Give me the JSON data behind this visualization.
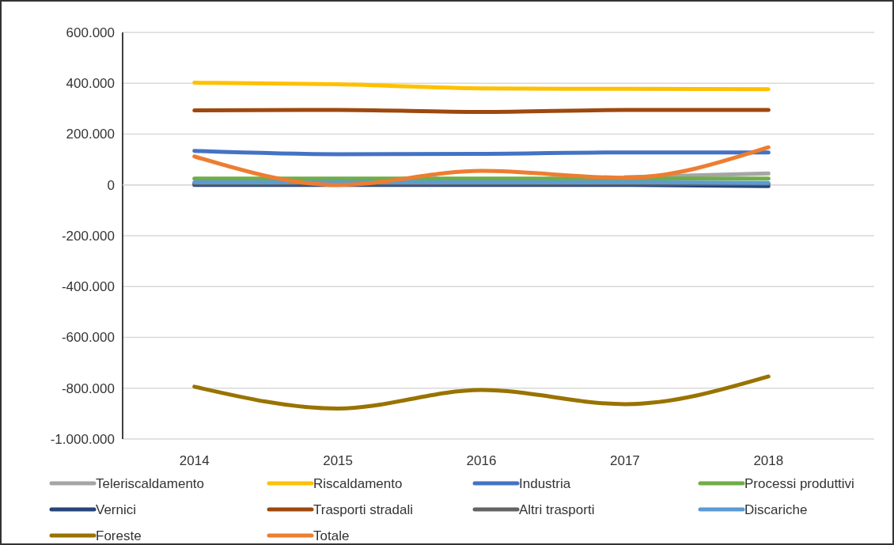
{
  "chart_data": {
    "type": "line",
    "categories": [
      "2014",
      "2015",
      "2016",
      "2017",
      "2018"
    ],
    "ylim": [
      -1000000,
      600000
    ],
    "yticks": [
      {
        "value": -1000000,
        "label": "-1.000.000"
      },
      {
        "value": -800000,
        "label": "-800.000"
      },
      {
        "value": -600000,
        "label": "-600.000"
      },
      {
        "value": -400000,
        "label": "-400.000"
      },
      {
        "value": -200000,
        "label": "-200.000"
      },
      {
        "value": 0,
        "label": "0"
      },
      {
        "value": 200000,
        "label": "200.000"
      },
      {
        "value": 400000,
        "label": "400.000"
      },
      {
        "value": 600000,
        "label": "600.000"
      }
    ],
    "grid": "y",
    "legend": "bottom",
    "marker": "none",
    "line_style": "solid",
    "series": [
      {
        "name": "Teleriscaldamento",
        "color": "#a5a5a5",
        "values": [
          null,
          null,
          null,
          30000,
          45000
        ]
      },
      {
        "name": "Riscaldamento",
        "color": "#ffc000",
        "values": [
          402000,
          396000,
          380000,
          378000,
          377000
        ]
      },
      {
        "name": "Industria",
        "color": "#4472c4",
        "values": [
          134000,
          121000,
          122000,
          128000,
          128000
        ]
      },
      {
        "name": "Processi produttivi",
        "color": "#70ad47",
        "values": [
          25000,
          25000,
          25000,
          25000,
          25000
        ]
      },
      {
        "name": "Vernici",
        "color": "#264478",
        "values": [
          0,
          0,
          0,
          0,
          -5000
        ]
      },
      {
        "name": "Trasporti stradali",
        "color": "#9e480e",
        "values": [
          293000,
          295000,
          287000,
          295000,
          295000
        ]
      },
      {
        "name": "Altri trasporti",
        "color": "#636363",
        "values": [
          5000,
          5000,
          5000,
          5000,
          5000
        ]
      },
      {
        "name": "Discariche",
        "color": "#5b9bd5",
        "values": [
          10000,
          10000,
          10000,
          10000,
          8000
        ]
      },
      {
        "name": "Foreste",
        "color": "#997300",
        "values": [
          -794000,
          -880000,
          -807000,
          -863000,
          -754000
        ]
      },
      {
        "name": "Totale",
        "color": "#ed7d31",
        "values": [
          112000,
          0,
          55000,
          28000,
          148000
        ]
      }
    ]
  }
}
